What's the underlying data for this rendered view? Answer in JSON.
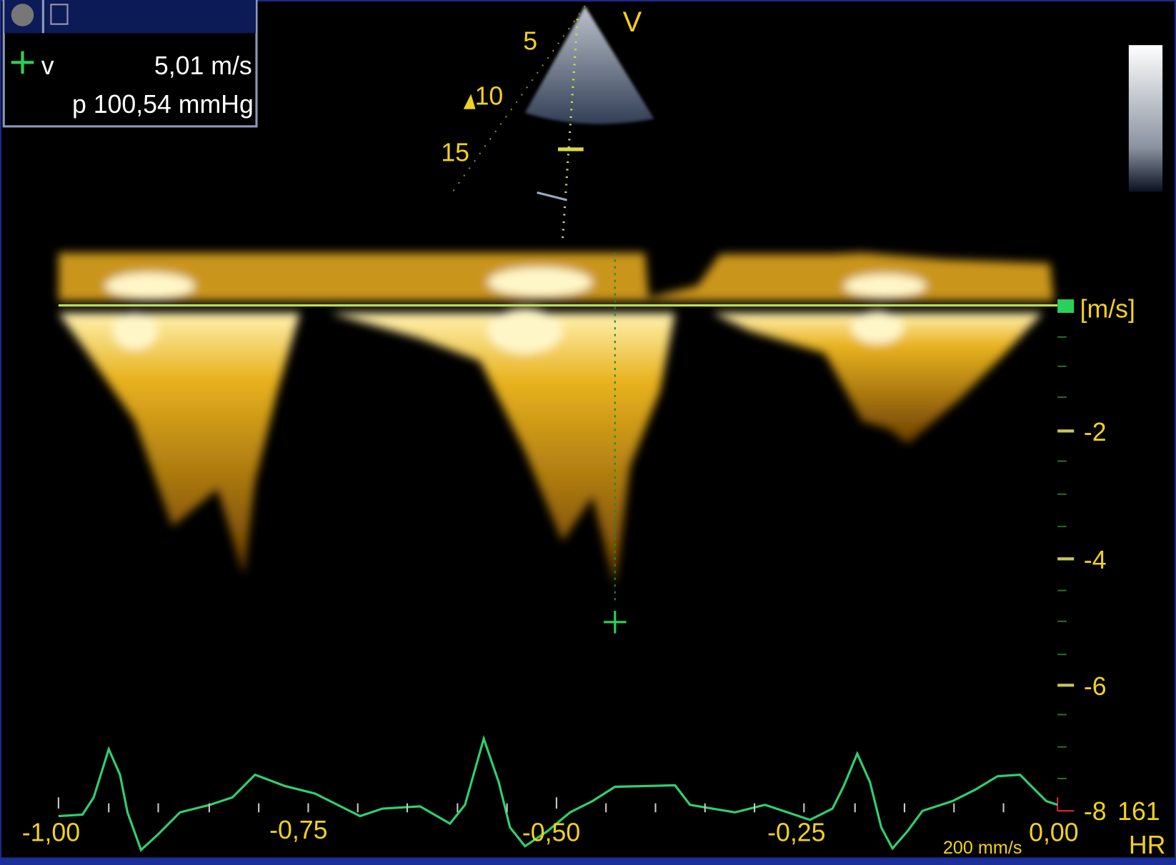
{
  "measurement_box": {
    "velocity_label": "v",
    "velocity": "5,01 m/s",
    "pressure": "p 100,54 mmHg"
  },
  "sector": {
    "depth_labels": [
      "5",
      "10",
      "15"
    ],
    "view_label": "V"
  },
  "velocity_scale": {
    "unit": "[m/s]",
    "labels": [
      "-2",
      "-4",
      "-6",
      "-8"
    ]
  },
  "heart_rate": {
    "value": "161",
    "label": "HR"
  },
  "time_axis": {
    "labels": [
      "-1,00",
      "-0,75",
      "-0,50",
      "-0,25",
      "0,00"
    ],
    "sweep_speed": "200 mm/s"
  }
}
